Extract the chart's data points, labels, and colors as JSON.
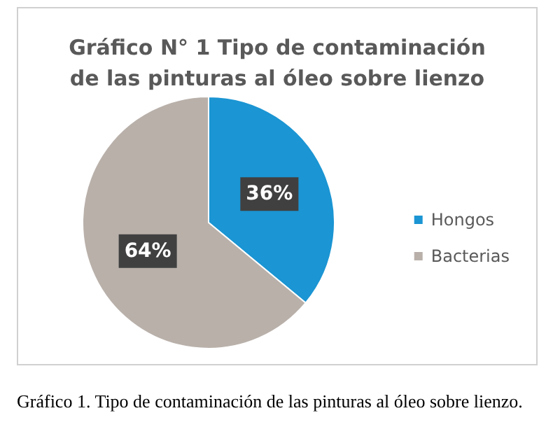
{
  "chart_data": {
    "type": "pie",
    "title": "Gráfico N° 1 Tipo de contaminación\nde las pinturas al óleo sobre lienzo",
    "categories": [
      "Hongos",
      "Bacterias"
    ],
    "values": [
      36,
      64
    ],
    "colors": [
      "#1b95d3",
      "#b9b0aa"
    ],
    "value_labels": [
      "36%",
      "64%"
    ],
    "legend": "right",
    "annotations": [
      "Gráfico 1. Tipo de contaminación de las pinturas al óleo sobre lienzo."
    ]
  }
}
